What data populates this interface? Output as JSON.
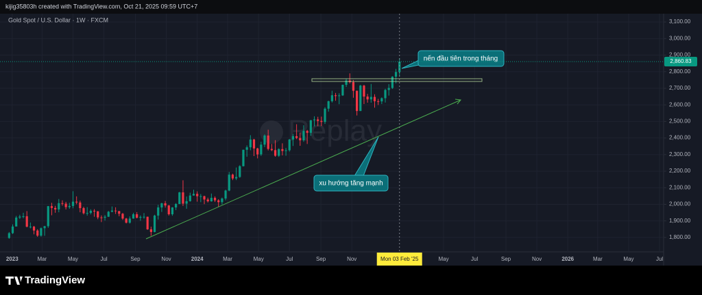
{
  "header": {
    "credit": "kijig35803h created with TradingView.com, Oct 21, 2025 09:59 UTC+7"
  },
  "footer": {
    "brand": "TradingView"
  },
  "chart_data": {
    "type": "candlestick",
    "title": "Gold Spot / U.S. Dollar · 1W · FXCM",
    "watermark": "Replay",
    "annotations": [
      "nến đầu tiên trong tháng",
      "xu hướng tăng mạnh"
    ],
    "crosshair_label": "Mon 03 Feb '25",
    "last_price_label": "2,860.83",
    "up_color": "#089981",
    "down_color": "#f23645",
    "grid": true,
    "xlim": [
      "2022-12-08",
      "2026-07-09"
    ],
    "ylim": [
      1713,
      3150
    ],
    "xticks": [
      {
        "value": "2023-01-01",
        "label": "2023"
      },
      {
        "value": "2023-03-01",
        "label": "Mar"
      },
      {
        "value": "2023-05-01",
        "label": "May"
      },
      {
        "value": "2023-07-01",
        "label": "Jul"
      },
      {
        "value": "2023-09-01",
        "label": "Sep"
      },
      {
        "value": "2023-11-01",
        "label": "Nov"
      },
      {
        "value": "2024-01-01",
        "label": "2024"
      },
      {
        "value": "2024-03-01",
        "label": "Mar"
      },
      {
        "value": "2024-05-01",
        "label": "May"
      },
      {
        "value": "2024-07-01",
        "label": "Jul"
      },
      {
        "value": "2024-09-01",
        "label": "Sep"
      },
      {
        "value": "2024-11-01",
        "label": "Nov"
      },
      {
        "value": "2025-05-01",
        "label": "May"
      },
      {
        "value": "2025-07-01",
        "label": "Jul"
      },
      {
        "value": "2025-09-01",
        "label": "Sep"
      },
      {
        "value": "2025-11-01",
        "label": "Nov"
      },
      {
        "value": "2026-01-01",
        "label": "2026"
      },
      {
        "value": "2026-03-01",
        "label": "Mar"
      },
      {
        "value": "2026-05-01",
        "label": "May"
      },
      {
        "value": "2026-07-01",
        "label": "Jul"
      }
    ],
    "yticks": [
      {
        "value": 1800,
        "label": "1,800.00"
      },
      {
        "value": 1900,
        "label": "1,900.00"
      },
      {
        "value": 2000,
        "label": "2,000.00"
      },
      {
        "value": 2100,
        "label": "2,100.00"
      },
      {
        "value": 2200,
        "label": "2,200.00"
      },
      {
        "value": 2300,
        "label": "2,300.00"
      },
      {
        "value": 2400,
        "label": "2,400.00"
      },
      {
        "value": 2500,
        "label": "2,500.00"
      },
      {
        "value": 2600,
        "label": "2,600.00"
      },
      {
        "value": 2700,
        "label": "2,700.00"
      },
      {
        "value": 2800,
        "label": "2,800.00"
      },
      {
        "value": 2900,
        "label": "2,900.00"
      },
      {
        "value": 3000,
        "label": "3,000.00"
      },
      {
        "value": 3100,
        "label": "3,100.00"
      }
    ],
    "x": [
      "2022-12-26",
      "2023-01-02",
      "2023-01-09",
      "2023-01-16",
      "2023-01-23",
      "2023-01-30",
      "2023-02-06",
      "2023-02-13",
      "2023-02-20",
      "2023-02-27",
      "2023-03-06",
      "2023-03-13",
      "2023-03-20",
      "2023-03-27",
      "2023-04-03",
      "2023-04-10",
      "2023-04-17",
      "2023-04-24",
      "2023-05-01",
      "2023-05-08",
      "2023-05-15",
      "2023-05-22",
      "2023-05-29",
      "2023-06-05",
      "2023-06-12",
      "2023-06-19",
      "2023-06-26",
      "2023-07-03",
      "2023-07-10",
      "2023-07-17",
      "2023-07-24",
      "2023-07-31",
      "2023-08-07",
      "2023-08-14",
      "2023-08-21",
      "2023-08-28",
      "2023-09-04",
      "2023-09-11",
      "2023-09-18",
      "2023-09-25",
      "2023-10-02",
      "2023-10-09",
      "2023-10-16",
      "2023-10-23",
      "2023-10-30",
      "2023-11-06",
      "2023-11-13",
      "2023-11-20",
      "2023-11-27",
      "2023-12-04",
      "2023-12-11",
      "2023-12-18",
      "2023-12-25",
      "2024-01-01",
      "2024-01-08",
      "2024-01-15",
      "2024-01-22",
      "2024-01-29",
      "2024-02-05",
      "2024-02-12",
      "2024-02-19",
      "2024-02-26",
      "2024-03-04",
      "2024-03-11",
      "2024-03-18",
      "2024-03-25",
      "2024-04-01",
      "2024-04-08",
      "2024-04-15",
      "2024-04-22",
      "2024-04-29",
      "2024-05-06",
      "2024-05-13",
      "2024-05-20",
      "2024-05-27",
      "2024-06-03",
      "2024-06-10",
      "2024-06-17",
      "2024-06-24",
      "2024-07-01",
      "2024-07-08",
      "2024-07-15",
      "2024-07-22",
      "2024-07-29",
      "2024-08-05",
      "2024-08-12",
      "2024-08-19",
      "2024-08-26",
      "2024-09-02",
      "2024-09-09",
      "2024-09-16",
      "2024-09-23",
      "2024-09-30",
      "2024-10-07",
      "2024-10-14",
      "2024-10-21",
      "2024-10-28",
      "2024-11-04",
      "2024-11-11",
      "2024-11-18",
      "2024-11-25",
      "2024-12-02",
      "2024-12-09",
      "2024-12-16",
      "2024-12-23",
      "2024-12-30",
      "2025-01-06",
      "2025-01-13",
      "2025-01-20",
      "2025-01-27",
      "2025-02-03"
    ],
    "open": [
      1797,
      1826,
      1866,
      1920,
      1926,
      1928,
      1865,
      1865,
      1842,
      1811,
      1856,
      1868,
      1989,
      1978,
      1969,
      2007,
      2004,
      1983,
      1990,
      2016,
      2011,
      1977,
      1946,
      1948,
      1961,
      1958,
      1921,
      1919,
      1925,
      1955,
      1962,
      1959,
      1943,
      1914,
      1889,
      1914,
      1940,
      1919,
      1924,
      1925,
      1849,
      1833,
      1932,
      1981,
      2006,
      1993,
      1940,
      1981,
      2002,
      2072,
      2004,
      2019,
      2053,
      2063,
      2049,
      2049,
      2029,
      2018,
      2039,
      2024,
      2013,
      2035,
      2083,
      2179,
      2156,
      2165,
      2230,
      2329,
      2344,
      2391,
      2337,
      2301,
      2360,
      2415,
      2334,
      2327,
      2293,
      2333,
      2322,
      2326,
      2391,
      2411,
      2400,
      2386,
      2443,
      2431,
      2507,
      2512,
      2503,
      2497,
      2577,
      2622,
      2658,
      2653,
      2657,
      2721,
      2747,
      2737,
      2685,
      2563,
      2716,
      2650,
      2633,
      2648,
      2622,
      2621,
      2640,
      2690,
      2702,
      2770,
      2798
    ],
    "high": [
      1833,
      1879,
      1930,
      1937,
      1949,
      1959,
      1890,
      1870,
      1850,
      1860,
      1870,
      1990,
      2009,
      1991,
      2032,
      2024,
      2015,
      2009,
      2079,
      2048,
      2022,
      1985,
      1983,
      1970,
      1971,
      1959,
      1933,
      1935,
      1960,
      1987,
      1982,
      1960,
      1948,
      1918,
      1927,
      1949,
      1953,
      1933,
      1947,
      1926,
      1865,
      1937,
      1997,
      2009,
      2020,
      1996,
      1983,
      2007,
      2075,
      2145,
      2047,
      2070,
      2088,
      2078,
      2062,
      2052,
      2040,
      2065,
      2048,
      2031,
      2041,
      2088,
      2195,
      2185,
      2222,
      2236,
      2330,
      2355,
      2417,
      2395,
      2341,
      2378,
      2422,
      2450,
      2364,
      2387,
      2338,
      2368,
      2340,
      2394,
      2424,
      2483,
      2432,
      2477,
      2449,
      2509,
      2531,
      2528,
      2529,
      2586,
      2625,
      2685,
      2672,
      2670,
      2722,
      2758,
      2790,
      2750,
      2686,
      2721,
      2721,
      2666,
      2726,
      2664,
      2636,
      2645,
      2697,
      2725,
      2773,
      2817,
      2882
    ],
    "low": [
      1792,
      1821,
      1867,
      1911,
      1916,
      1861,
      1855,
      1819,
      1804,
      1805,
      1810,
      1858,
      1934,
      1949,
      1952,
      1992,
      1969,
      1973,
      1976,
      2000,
      1952,
      1939,
      1932,
      1939,
      1925,
      1910,
      1893,
      1902,
      1924,
      1952,
      1942,
      1928,
      1906,
      1885,
      1884,
      1913,
      1915,
      1901,
      1913,
      1846,
      1810,
      1831,
      1908,
      1954,
      1980,
      1932,
      1931,
      1965,
      2001,
      1990,
      1973,
      2016,
      2052,
      2016,
      2013,
      2001,
      2011,
      2016,
      2014,
      1984,
      1999,
      2024,
      2079,
      2146,
      2146,
      2160,
      2228,
      2287,
      2326,
      2291,
      2277,
      2292,
      2345,
      2325,
      2321,
      2287,
      2286,
      2295,
      2293,
      2318,
      2352,
      2393,
      2353,
      2377,
      2364,
      2413,
      2470,
      2471,
      2472,
      2485,
      2559,
      2614,
      2625,
      2604,
      2654,
      2708,
      2729,
      2643,
      2536,
      2563,
      2605,
      2613,
      2613,
      2583,
      2599,
      2605,
      2614,
      2656,
      2696,
      2730,
      2772
    ],
    "close": [
      1826,
      1866,
      1920,
      1926,
      1928,
      1865,
      1865,
      1842,
      1811,
      1856,
      1868,
      1989,
      1978,
      1969,
      2007,
      2004,
      1983,
      1990,
      2016,
      2011,
      1977,
      1946,
      1948,
      1961,
      1958,
      1921,
      1919,
      1925,
      1955,
      1962,
      1959,
      1943,
      1914,
      1889,
      1914,
      1940,
      1919,
      1924,
      1925,
      1849,
      1833,
      1932,
      1981,
      2006,
      1993,
      1940,
      1981,
      2002,
      2072,
      2004,
      2019,
      2053,
      2063,
      2049,
      2049,
      2029,
      2018,
      2039,
      2024,
      2013,
      2035,
      2083,
      2179,
      2156,
      2165,
      2230,
      2329,
      2344,
      2391,
      2337,
      2301,
      2360,
      2415,
      2334,
      2327,
      2293,
      2333,
      2322,
      2326,
      2391,
      2411,
      2400,
      2386,
      2443,
      2431,
      2507,
      2512,
      2503,
      2497,
      2577,
      2622,
      2658,
      2653,
      2657,
      2721,
      2747,
      2737,
      2685,
      2563,
      2716,
      2650,
      2633,
      2648,
      2622,
      2621,
      2640,
      2690,
      2702,
      2770,
      2798,
      2860.83
    ]
  }
}
